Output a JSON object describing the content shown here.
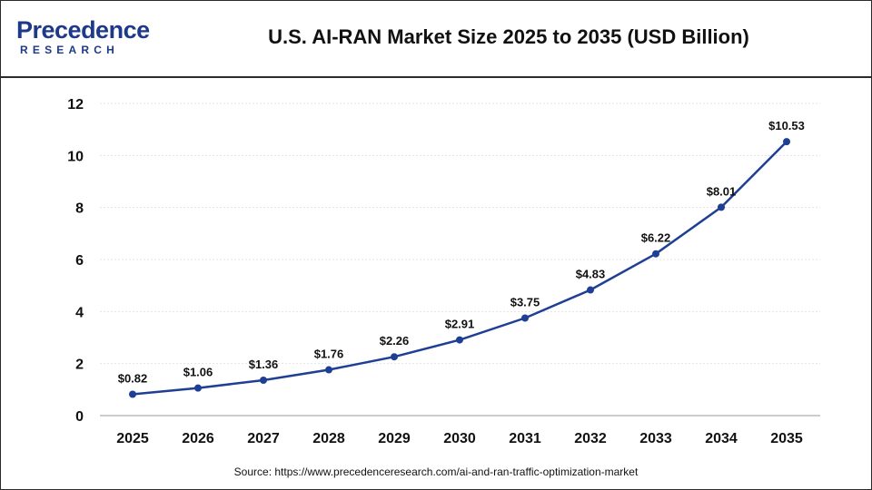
{
  "brand": {
    "name_top": "Precedence",
    "name_bottom": "RESEARCH",
    "color": "#1d3a8a"
  },
  "source_text": "Source: https://www.precedenceresearch.com/ai-and-ran-traffic-optimization-market",
  "chart_data": {
    "type": "line",
    "title": "U.S. AI-RAN Market Size 2025 to 2035 (USD Billion)",
    "xlabel": "",
    "ylabel": "",
    "categories": [
      "2025",
      "2026",
      "2027",
      "2028",
      "2029",
      "2030",
      "2031",
      "2032",
      "2033",
      "2034",
      "2035"
    ],
    "series": [
      {
        "values": [
          0.82,
          1.06,
          1.36,
          1.76,
          2.26,
          2.91,
          3.75,
          4.83,
          6.22,
          8.01,
          10.53
        ],
        "data_labels": [
          "$0.82",
          "$1.06",
          "$1.36",
          "$1.76",
          "$2.26",
          "$2.91",
          "$3.75",
          "$4.83",
          "$6.22",
          "$8.01",
          "$10.53"
        ],
        "color": "#1e3f94"
      }
    ],
    "ylim": [
      0,
      12
    ],
    "yticks": [
      0,
      2,
      4,
      6,
      8,
      10,
      12
    ],
    "grid": "horizontal",
    "legend": "none"
  }
}
